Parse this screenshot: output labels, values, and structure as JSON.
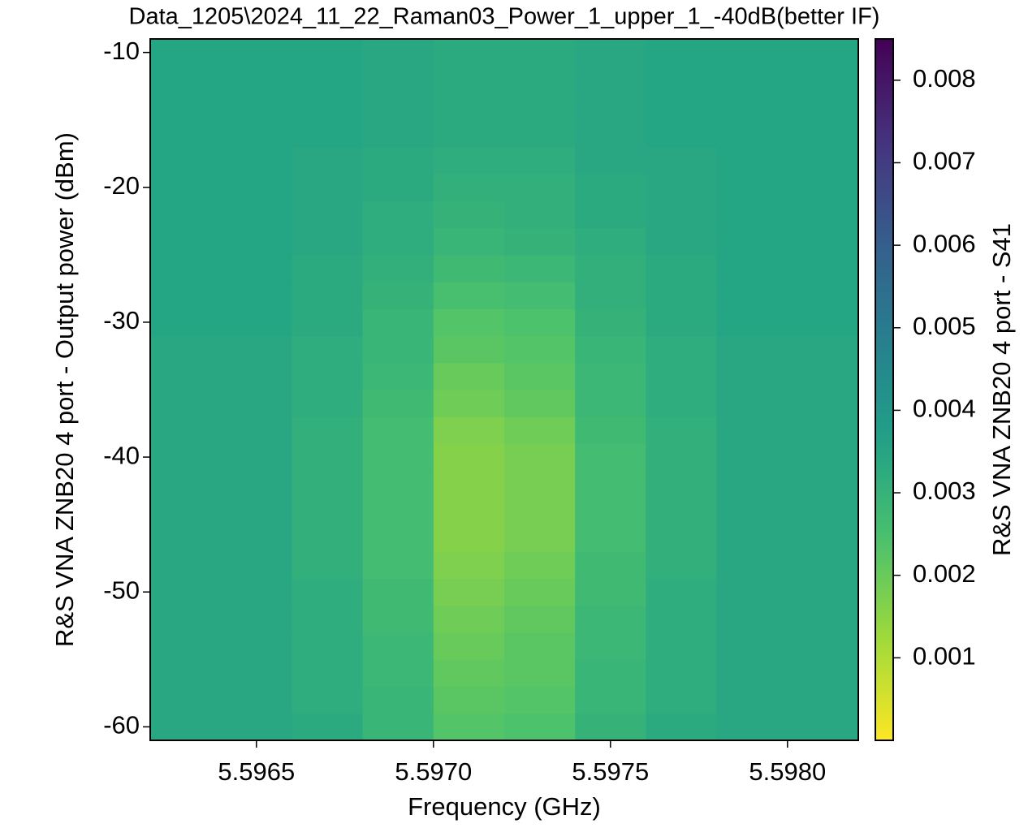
{
  "chart_data": {
    "type": "heatmap",
    "title": "Data_1205\\2024_11_22_Raman03_Power_1_upper_1_-40dB(better IF)",
    "x_label": "Frequency (GHz)",
    "y_label": "R&S VNA ZNB20 4 port - Output power (dBm)",
    "colorbar_label": "R&S VNA ZNB20 4 port - S41",
    "colormap": "viridis_r",
    "x": [
      5.5963,
      5.5965,
      5.5967,
      5.5969,
      5.5971,
      5.5973,
      5.5975,
      5.5977,
      5.5979,
      5.5981
    ],
    "y": [
      -60,
      -58,
      -56,
      -54,
      -52,
      -50,
      -48,
      -46,
      -44,
      -42,
      -40,
      -38,
      -36,
      -34,
      -32,
      -30,
      -28,
      -26,
      -24,
      -22,
      -20,
      -18,
      -16,
      -14,
      -12,
      -10
    ],
    "z": [
      [
        0.0034,
        0.0034,
        0.0033,
        0.0029,
        0.0023,
        0.0024,
        0.003,
        0.0033,
        0.0034,
        0.0034
      ],
      [
        0.0034,
        0.0034,
        0.0032,
        0.0029,
        0.0022,
        0.0023,
        0.0029,
        0.0032,
        0.0034,
        0.0034
      ],
      [
        0.0034,
        0.0034,
        0.0032,
        0.0028,
        0.0021,
        0.0022,
        0.0029,
        0.0032,
        0.0034,
        0.0034
      ],
      [
        0.0034,
        0.0034,
        0.0032,
        0.0028,
        0.002,
        0.0022,
        0.0028,
        0.0032,
        0.0034,
        0.0034
      ],
      [
        0.0034,
        0.0034,
        0.0032,
        0.0027,
        0.0019,
        0.0021,
        0.0028,
        0.0032,
        0.0034,
        0.0034
      ],
      [
        0.0034,
        0.0034,
        0.0032,
        0.0027,
        0.0018,
        0.002,
        0.0027,
        0.0032,
        0.0034,
        0.0034
      ],
      [
        0.0034,
        0.0034,
        0.0031,
        0.0026,
        0.0017,
        0.0019,
        0.0027,
        0.0031,
        0.0034,
        0.0034
      ],
      [
        0.0034,
        0.0034,
        0.0031,
        0.0026,
        0.0016,
        0.0018,
        0.0026,
        0.0031,
        0.0034,
        0.0034
      ],
      [
        0.0034,
        0.0034,
        0.0031,
        0.0026,
        0.0016,
        0.0018,
        0.0026,
        0.0031,
        0.0034,
        0.0034
      ],
      [
        0.0034,
        0.0034,
        0.0031,
        0.0026,
        0.0016,
        0.0018,
        0.0026,
        0.0031,
        0.0034,
        0.0034
      ],
      [
        0.0034,
        0.0034,
        0.0031,
        0.0026,
        0.0016,
        0.0018,
        0.0026,
        0.0031,
        0.0034,
        0.0034
      ],
      [
        0.0034,
        0.0034,
        0.0031,
        0.0026,
        0.0017,
        0.0019,
        0.0027,
        0.0031,
        0.0034,
        0.0034
      ],
      [
        0.0034,
        0.0034,
        0.0032,
        0.0027,
        0.0019,
        0.0021,
        0.0028,
        0.0032,
        0.0034,
        0.0034
      ],
      [
        0.0034,
        0.0034,
        0.0032,
        0.0028,
        0.002,
        0.0022,
        0.0028,
        0.0032,
        0.0034,
        0.0034
      ],
      [
        0.0034,
        0.0034,
        0.0032,
        0.0029,
        0.0022,
        0.0023,
        0.0029,
        0.0032,
        0.0034,
        0.0034
      ],
      [
        0.0035,
        0.0035,
        0.0033,
        0.0029,
        0.0023,
        0.0024,
        0.003,
        0.0033,
        0.0035,
        0.0035
      ],
      [
        0.0035,
        0.0035,
        0.0033,
        0.003,
        0.0025,
        0.0026,
        0.0031,
        0.0033,
        0.0035,
        0.0035
      ],
      [
        0.0035,
        0.0035,
        0.0033,
        0.0031,
        0.0027,
        0.0028,
        0.0031,
        0.0033,
        0.0035,
        0.0035
      ],
      [
        0.0035,
        0.0035,
        0.0034,
        0.0032,
        0.0029,
        0.003,
        0.0032,
        0.0034,
        0.0035,
        0.0035
      ],
      [
        0.0035,
        0.0035,
        0.0034,
        0.0032,
        0.003,
        0.0031,
        0.0033,
        0.0034,
        0.0035,
        0.0035
      ],
      [
        0.0035,
        0.0035,
        0.0034,
        0.0033,
        0.0031,
        0.0031,
        0.0033,
        0.0034,
        0.0035,
        0.0035
      ],
      [
        0.0035,
        0.0035,
        0.0034,
        0.0033,
        0.0032,
        0.0032,
        0.0034,
        0.0034,
        0.0035,
        0.0035
      ],
      [
        0.0035,
        0.0035,
        0.0035,
        0.0034,
        0.0033,
        0.0033,
        0.0034,
        0.0035,
        0.0035,
        0.0035
      ],
      [
        0.0035,
        0.0035,
        0.0035,
        0.0034,
        0.0033,
        0.0033,
        0.0034,
        0.0035,
        0.0035,
        0.0035
      ],
      [
        0.0035,
        0.0035,
        0.0035,
        0.0034,
        0.0033,
        0.0033,
        0.0034,
        0.0035,
        0.0035,
        0.0035
      ],
      [
        0.0035,
        0.0035,
        0.0035,
        0.0034,
        0.0033,
        0.0033,
        0.0034,
        0.0035,
        0.0035,
        0.0035
      ]
    ],
    "xlim": [
      5.5962,
      5.5982
    ],
    "xticks": [
      5.5965,
      {
        "value": 5.597,
        "label": "5.5970"
      },
      5.5975,
      {
        "value": 5.598,
        "label": "5.5980"
      }
    ],
    "ylim": [
      -61,
      -9
    ],
    "yticks": [
      -10,
      -20,
      -30,
      -40,
      -50,
      -60
    ],
    "zlim": [
      0,
      0.0085
    ],
    "zticks": [
      0.001,
      0.002,
      0.003,
      0.004,
      0.005,
      0.006,
      0.007,
      0.008
    ]
  }
}
